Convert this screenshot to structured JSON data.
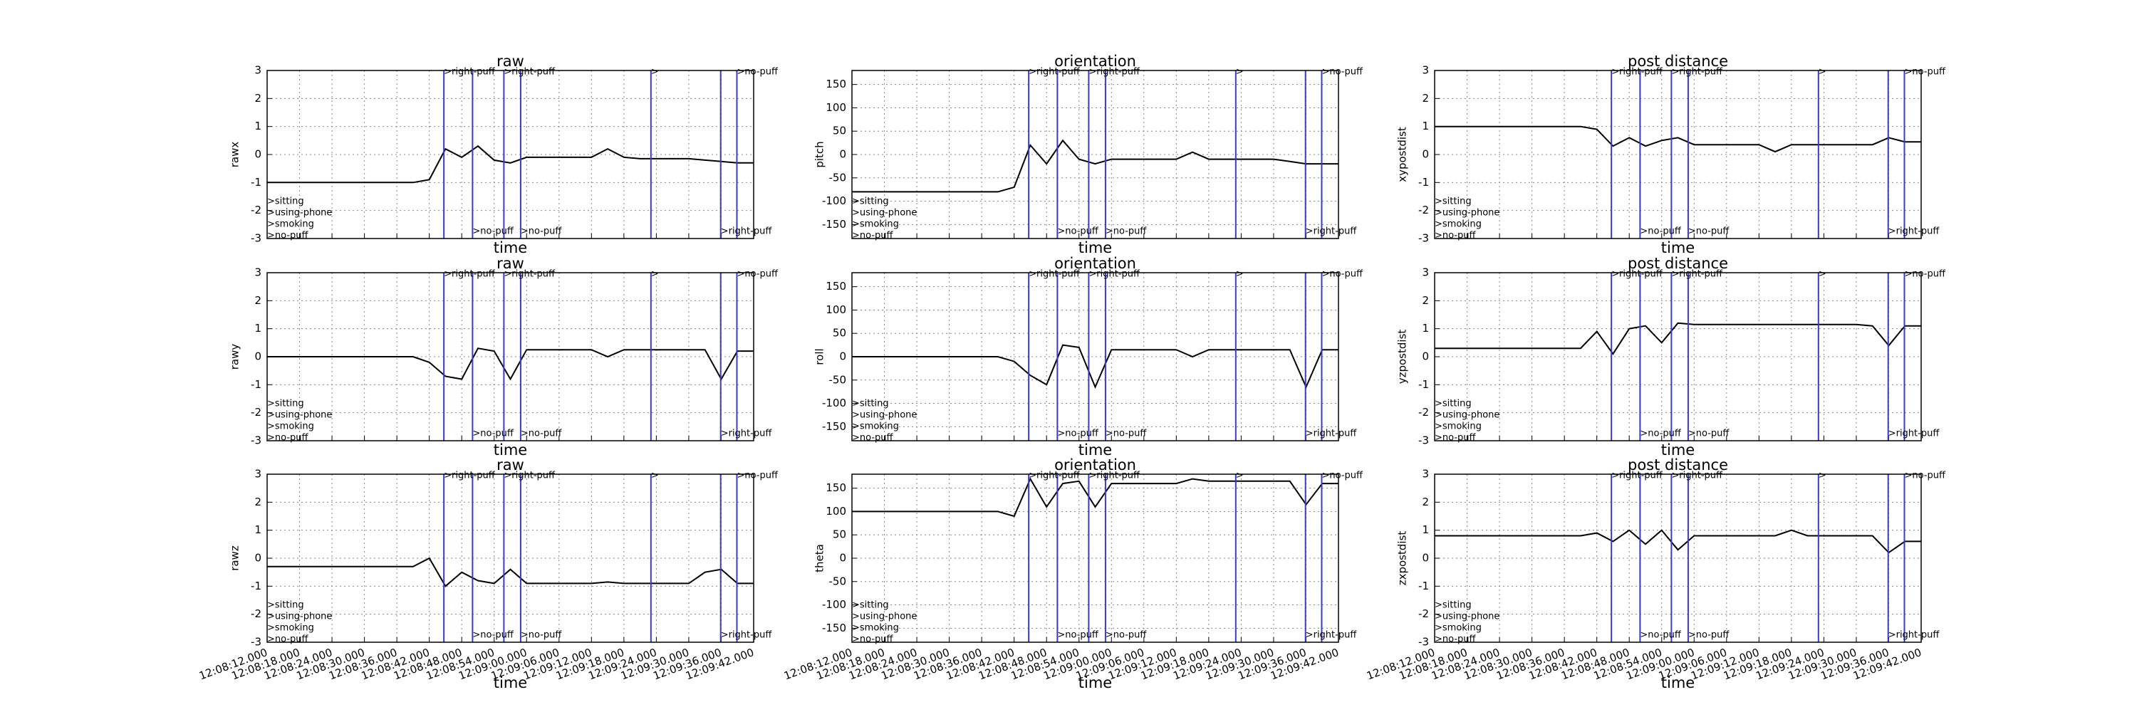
{
  "chart_data": [
    {
      "type": "line",
      "title": "raw",
      "xlabel": "time",
      "ylabel": "rawx",
      "color": "#000000",
      "grid": true,
      "x": [
        43692,
        43695,
        43698,
        43701,
        43704,
        43707,
        43710,
        43713,
        43716,
        43719,
        43722,
        43725,
        43728,
        43731,
        43734,
        43737,
        43740,
        43743,
        43746,
        43749,
        43752,
        43755,
        43758,
        43761,
        43764,
        43767,
        43770,
        43773,
        43776,
        43779,
        43782
      ],
      "values": [
        -1,
        -1,
        -1,
        -1,
        -1,
        -1,
        -1,
        -1,
        -1,
        -1,
        -0.9,
        0.2,
        -0.1,
        0.3,
        -0.2,
        -0.3,
        -0.1,
        -0.1,
        -0.1,
        -0.1,
        -0.1,
        0.2,
        -0.1,
        -0.15,
        -0.15,
        -0.15,
        -0.15,
        -0.2,
        -0.25,
        -0.3,
        -0.3
      ],
      "xlim": [
        43692,
        43782
      ],
      "xticks": [
        43692,
        43698,
        43704,
        43710,
        43716,
        43722,
        43728,
        43734,
        43740,
        43746,
        43752,
        43758,
        43764,
        43770,
        43776,
        43782
      ],
      "ylim": [
        -3,
        3
      ],
      "yticks": [
        -3,
        -2,
        -1,
        0,
        1,
        2,
        3
      ]
    },
    {
      "type": "line",
      "title": "orientation",
      "xlabel": "time",
      "ylabel": "pitch",
      "color": "#000000",
      "grid": true,
      "x": [
        43692,
        43695,
        43698,
        43701,
        43704,
        43707,
        43710,
        43713,
        43716,
        43719,
        43722,
        43725,
        43728,
        43731,
        43734,
        43737,
        43740,
        43743,
        43746,
        43749,
        43752,
        43755,
        43758,
        43761,
        43764,
        43767,
        43770,
        43773,
        43776,
        43779,
        43782
      ],
      "values": [
        -80,
        -80,
        -80,
        -80,
        -80,
        -80,
        -80,
        -80,
        -80,
        -80,
        -70,
        20,
        -20,
        30,
        -10,
        -20,
        -10,
        -10,
        -10,
        -10,
        -10,
        5,
        -10,
        -10,
        -10,
        -10,
        -10,
        -15,
        -20,
        -20,
        -20
      ],
      "xlim": [
        43692,
        43782
      ],
      "xticks": [
        43692,
        43698,
        43704,
        43710,
        43716,
        43722,
        43728,
        43734,
        43740,
        43746,
        43752,
        43758,
        43764,
        43770,
        43776,
        43782
      ],
      "ylim": [
        -180,
        180
      ],
      "yticks": [
        -150,
        -100,
        -50,
        0,
        50,
        100,
        150
      ]
    },
    {
      "type": "line",
      "title": "post distance",
      "xlabel": "time",
      "ylabel": "xypostdist",
      "color": "#000000",
      "grid": true,
      "x": [
        43692,
        43695,
        43698,
        43701,
        43704,
        43707,
        43710,
        43713,
        43716,
        43719,
        43722,
        43725,
        43728,
        43731,
        43734,
        43737,
        43740,
        43743,
        43746,
        43749,
        43752,
        43755,
        43758,
        43761,
        43764,
        43767,
        43770,
        43773,
        43776,
        43779,
        43782
      ],
      "values": [
        1,
        1,
        1,
        1,
        1,
        1,
        1,
        1,
        1,
        1,
        0.9,
        0.3,
        0.6,
        0.3,
        0.5,
        0.6,
        0.35,
        0.35,
        0.35,
        0.35,
        0.35,
        0.1,
        0.35,
        0.35,
        0.35,
        0.35,
        0.35,
        0.35,
        0.6,
        0.45,
        0.45
      ],
      "xlim": [
        43692,
        43782
      ],
      "xticks": [
        43692,
        43698,
        43704,
        43710,
        43716,
        43722,
        43728,
        43734,
        43740,
        43746,
        43752,
        43758,
        43764,
        43770,
        43776,
        43782
      ],
      "ylim": [
        -3,
        3
      ],
      "yticks": [
        -3,
        -2,
        -1,
        0,
        1,
        2,
        3
      ]
    },
    {
      "type": "line",
      "title": "raw",
      "xlabel": "time",
      "ylabel": "rawy",
      "color": "#000000",
      "grid": true,
      "x": [
        43692,
        43695,
        43698,
        43701,
        43704,
        43707,
        43710,
        43713,
        43716,
        43719,
        43722,
        43725,
        43728,
        43731,
        43734,
        43737,
        43740,
        43743,
        43746,
        43749,
        43752,
        43755,
        43758,
        43761,
        43764,
        43767,
        43770,
        43773,
        43776,
        43779,
        43782
      ],
      "values": [
        0,
        0,
        0,
        0,
        0,
        0,
        0,
        0,
        0,
        0,
        -0.2,
        -0.7,
        -0.8,
        0.3,
        0.2,
        -0.8,
        0.25,
        0.25,
        0.25,
        0.25,
        0.25,
        0,
        0.25,
        0.25,
        0.25,
        0.25,
        0.25,
        0.25,
        -0.8,
        0.2,
        0.2
      ],
      "xlim": [
        43692,
        43782
      ],
      "xticks": [
        43692,
        43698,
        43704,
        43710,
        43716,
        43722,
        43728,
        43734,
        43740,
        43746,
        43752,
        43758,
        43764,
        43770,
        43776,
        43782
      ],
      "ylim": [
        -3,
        3
      ],
      "yticks": [
        -3,
        -2,
        -1,
        0,
        1,
        2,
        3
      ]
    },
    {
      "type": "line",
      "title": "orientation",
      "xlabel": "time",
      "ylabel": "roll",
      "color": "#000000",
      "grid": true,
      "x": [
        43692,
        43695,
        43698,
        43701,
        43704,
        43707,
        43710,
        43713,
        43716,
        43719,
        43722,
        43725,
        43728,
        43731,
        43734,
        43737,
        43740,
        43743,
        43746,
        43749,
        43752,
        43755,
        43758,
        43761,
        43764,
        43767,
        43770,
        43773,
        43776,
        43779,
        43782
      ],
      "values": [
        0,
        0,
        0,
        0,
        0,
        0,
        0,
        0,
        0,
        0,
        -10,
        -40,
        -60,
        25,
        20,
        -65,
        15,
        15,
        15,
        15,
        15,
        0,
        15,
        15,
        15,
        15,
        15,
        15,
        -65,
        15,
        15
      ],
      "xlim": [
        43692,
        43782
      ],
      "xticks": [
        43692,
        43698,
        43704,
        43710,
        43716,
        43722,
        43728,
        43734,
        43740,
        43746,
        43752,
        43758,
        43764,
        43770,
        43776,
        43782
      ],
      "ylim": [
        -180,
        180
      ],
      "yticks": [
        -150,
        -100,
        -50,
        0,
        50,
        100,
        150
      ]
    },
    {
      "type": "line",
      "title": "post distance",
      "xlabel": "time",
      "ylabel": "yzpostdist",
      "color": "#000000",
      "grid": true,
      "x": [
        43692,
        43695,
        43698,
        43701,
        43704,
        43707,
        43710,
        43713,
        43716,
        43719,
        43722,
        43725,
        43728,
        43731,
        43734,
        43737,
        43740,
        43743,
        43746,
        43749,
        43752,
        43755,
        43758,
        43761,
        43764,
        43767,
        43770,
        43773,
        43776,
        43779,
        43782
      ],
      "values": [
        0.3,
        0.3,
        0.3,
        0.3,
        0.3,
        0.3,
        0.3,
        0.3,
        0.3,
        0.3,
        0.9,
        0.1,
        1,
        1.1,
        0.5,
        1.2,
        1.15,
        1.15,
        1.15,
        1.15,
        1.15,
        1.15,
        1.15,
        1.15,
        1.15,
        1.15,
        1.15,
        1.1,
        0.4,
        1.1,
        1.1
      ],
      "xlim": [
        43692,
        43782
      ],
      "xticks": [
        43692,
        43698,
        43704,
        43710,
        43716,
        43722,
        43728,
        43734,
        43740,
        43746,
        43752,
        43758,
        43764,
        43770,
        43776,
        43782
      ],
      "ylim": [
        -3,
        3
      ],
      "yticks": [
        -3,
        -2,
        -1,
        0,
        1,
        2,
        3
      ]
    },
    {
      "type": "line",
      "title": "raw",
      "xlabel": "time",
      "ylabel": "rawz",
      "color": "#000000",
      "grid": true,
      "x": [
        43692,
        43695,
        43698,
        43701,
        43704,
        43707,
        43710,
        43713,
        43716,
        43719,
        43722,
        43725,
        43728,
        43731,
        43734,
        43737,
        43740,
        43743,
        43746,
        43749,
        43752,
        43755,
        43758,
        43761,
        43764,
        43767,
        43770,
        43773,
        43776,
        43779,
        43782
      ],
      "values": [
        -0.3,
        -0.3,
        -0.3,
        -0.3,
        -0.3,
        -0.3,
        -0.3,
        -0.3,
        -0.3,
        -0.3,
        0,
        -1,
        -0.5,
        -0.8,
        -0.9,
        -0.4,
        -0.9,
        -0.9,
        -0.9,
        -0.9,
        -0.9,
        -0.85,
        -0.9,
        -0.9,
        -0.9,
        -0.9,
        -0.9,
        -0.5,
        -0.4,
        -0.9,
        -0.9
      ],
      "xlim": [
        43692,
        43782
      ],
      "xticks": [
        {
          "value": 43692,
          "label": "12:08:12.000"
        },
        {
          "value": 43698,
          "label": "12:08:18.000"
        },
        {
          "value": 43704,
          "label": "12:08:24.000"
        },
        {
          "value": 43710,
          "label": "12:08:30.000"
        },
        {
          "value": 43716,
          "label": "12:08:36.000"
        },
        {
          "value": 43722,
          "label": "12:08:42.000"
        },
        {
          "value": 43728,
          "label": "12:08:48.000"
        },
        {
          "value": 43734,
          "label": "12:08:54.000"
        },
        {
          "value": 43740,
          "label": "12:09:00.000"
        },
        {
          "value": 43746,
          "label": "12:09:06.000"
        },
        {
          "value": 43752,
          "label": "12:09:12.000"
        },
        {
          "value": 43758,
          "label": "12:09:18.000"
        },
        {
          "value": 43764,
          "label": "12:09:24.000"
        },
        {
          "value": 43770,
          "label": "12:09:30.000"
        },
        {
          "value": 43776,
          "label": "12:09:36.000"
        },
        {
          "value": 43782,
          "label": "12:09:42.000"
        }
      ],
      "ylim": [
        -3,
        3
      ],
      "yticks": [
        -3,
        -2,
        -1,
        0,
        1,
        2,
        3
      ]
    },
    {
      "type": "line",
      "title": "orientation",
      "xlabel": "time",
      "ylabel": "theta",
      "color": "#000000",
      "grid": true,
      "x": [
        43692,
        43695,
        43698,
        43701,
        43704,
        43707,
        43710,
        43713,
        43716,
        43719,
        43722,
        43725,
        43728,
        43731,
        43734,
        43737,
        43740,
        43743,
        43746,
        43749,
        43752,
        43755,
        43758,
        43761,
        43764,
        43767,
        43770,
        43773,
        43776,
        43779,
        43782
      ],
      "values": [
        100,
        100,
        100,
        100,
        100,
        100,
        100,
        100,
        100,
        100,
        90,
        170,
        110,
        160,
        165,
        110,
        160,
        160,
        160,
        160,
        160,
        170,
        165,
        165,
        165,
        165,
        165,
        165,
        115,
        160,
        160
      ],
      "xlim": [
        43692,
        43782
      ],
      "xticks": [
        {
          "value": 43692,
          "label": "12:08:12.000"
        },
        {
          "value": 43698,
          "label": "12:08:18.000"
        },
        {
          "value": 43704,
          "label": "12:08:24.000"
        },
        {
          "value": 43710,
          "label": "12:08:30.000"
        },
        {
          "value": 43716,
          "label": "12:08:36.000"
        },
        {
          "value": 43722,
          "label": "12:08:42.000"
        },
        {
          "value": 43728,
          "label": "12:08:48.000"
        },
        {
          "value": 43734,
          "label": "12:08:54.000"
        },
        {
          "value": 43740,
          "label": "12:09:00.000"
        },
        {
          "value": 43746,
          "label": "12:09:06.000"
        },
        {
          "value": 43752,
          "label": "12:09:12.000"
        },
        {
          "value": 43758,
          "label": "12:09:18.000"
        },
        {
          "value": 43764,
          "label": "12:09:24.000"
        },
        {
          "value": 43770,
          "label": "12:09:30.000"
        },
        {
          "value": 43776,
          "label": "12:09:36.000"
        },
        {
          "value": 43782,
          "label": "12:09:42.000"
        }
      ],
      "ylim": [
        -180,
        180
      ],
      "yticks": [
        -150,
        -100,
        -50,
        0,
        50,
        100,
        150
      ]
    },
    {
      "type": "line",
      "title": "post distance",
      "xlabel": "time",
      "ylabel": "zxpostdist",
      "color": "#000000",
      "grid": true,
      "x": [
        43692,
        43695,
        43698,
        43701,
        43704,
        43707,
        43710,
        43713,
        43716,
        43719,
        43722,
        43725,
        43728,
        43731,
        43734,
        43737,
        43740,
        43743,
        43746,
        43749,
        43752,
        43755,
        43758,
        43761,
        43764,
        43767,
        43770,
        43773,
        43776,
        43779,
        43782
      ],
      "values": [
        0.8,
        0.8,
        0.8,
        0.8,
        0.8,
        0.8,
        0.8,
        0.8,
        0.8,
        0.8,
        0.9,
        0.6,
        1,
        0.5,
        1,
        0.3,
        0.8,
        0.8,
        0.8,
        0.8,
        0.8,
        0.8,
        1,
        0.8,
        0.8,
        0.8,
        0.8,
        0.8,
        0.2,
        0.6,
        0.6
      ],
      "xlim": [
        43692,
        43782
      ],
      "xticks": [
        {
          "value": 43692,
          "label": "12:08:12.000"
        },
        {
          "value": 43698,
          "label": "12:08:18.000"
        },
        {
          "value": 43704,
          "label": "12:08:24.000"
        },
        {
          "value": 43710,
          "label": "12:08:30.000"
        },
        {
          "value": 43716,
          "label": "12:08:36.000"
        },
        {
          "value": 43722,
          "label": "12:08:42.000"
        },
        {
          "value": 43728,
          "label": "12:08:48.000"
        },
        {
          "value": 43734,
          "label": "12:08:54.000"
        },
        {
          "value": 43740,
          "label": "12:09:00.000"
        },
        {
          "value": 43746,
          "label": "12:09:06.000"
        },
        {
          "value": 43752,
          "label": "12:09:12.000"
        },
        {
          "value": 43758,
          "label": "12:09:18.000"
        },
        {
          "value": 43764,
          "label": "12:09:24.000"
        },
        {
          "value": 43770,
          "label": "12:09:30.000"
        },
        {
          "value": 43776,
          "label": "12:09:36.000"
        },
        {
          "value": 43782,
          "label": "12:09:42.000"
        }
      ],
      "ylim": [
        -3,
        3
      ],
      "yticks": [
        -3,
        -2,
        -1,
        0,
        1,
        2,
        3
      ]
    }
  ],
  "markers": {
    "color": "#3a3ad0",
    "lines": [
      43724.7,
      43730.0,
      43735.8,
      43738.9,
      43763.0,
      43775.9,
      43778.9
    ],
    "labels": [
      {
        "text": ">right-puff",
        "x": 43724.7,
        "edge": "top"
      },
      {
        "text": ">no-puff",
        "x": 43730.0,
        "edge": "bottom"
      },
      {
        "text": ">right-puff",
        "x": 43735.8,
        "edge": "top"
      },
      {
        "text": ">no-puff",
        "x": 43738.9,
        "edge": "bottom"
      },
      {
        "text": ">",
        "x": 43763.0,
        "edge": "top"
      },
      {
        "text": ">right-puff",
        "x": 43775.9,
        "edge": "bottom"
      },
      {
        "text": ">no-puff",
        "x": 43778.9,
        "edge": "top"
      }
    ],
    "states": [
      ">sitting",
      ">using-phone",
      ">smoking",
      ">no-puff"
    ]
  }
}
